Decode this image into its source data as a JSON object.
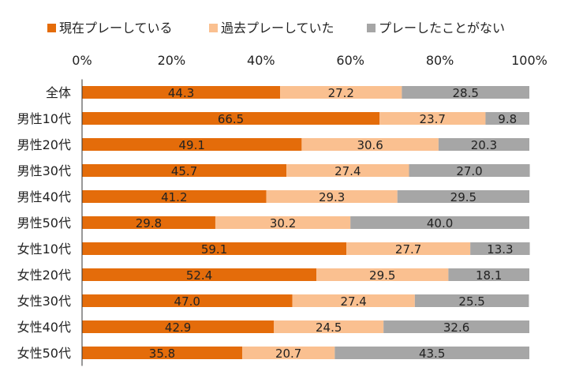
{
  "chart_data": {
    "type": "bar",
    "orientation": "horizontal",
    "stacked": true,
    "percent_axis": true,
    "title": "",
    "xlabel": "",
    "ylabel": "",
    "xlim": [
      0,
      100
    ],
    "x_ticks": [
      "0%",
      "20%",
      "40%",
      "60%",
      "80%",
      "100%"
    ],
    "legend_position": "top",
    "categories": [
      "全体",
      "男性10代",
      "男性20代",
      "男性30代",
      "男性40代",
      "男性50代",
      "女性10代",
      "女性20代",
      "女性30代",
      "女性40代",
      "女性50代"
    ],
    "series": [
      {
        "name": "現在プレーしている",
        "color": "#e46c0a",
        "values": [
          44.3,
          66.5,
          49.1,
          45.7,
          41.2,
          29.8,
          59.1,
          52.4,
          47.0,
          42.9,
          35.8
        ],
        "labels": [
          "44.3",
          "66.5",
          "49.1",
          "45.7",
          "41.2",
          "29.8",
          "59.1",
          "52.4",
          "47.0",
          "42.9",
          "35.8"
        ]
      },
      {
        "name": "過去プレーしていた",
        "color": "#fac090",
        "values": [
          27.2,
          23.7,
          30.6,
          27.4,
          29.3,
          30.2,
          27.7,
          29.5,
          27.4,
          24.5,
          20.7
        ],
        "labels": [
          "27.2",
          "23.7",
          "30.6",
          "27.4",
          "29.3",
          "30.2",
          "27.7",
          "29.5",
          "27.4",
          "24.5",
          "20.7"
        ]
      },
      {
        "name": "プレーしたことがない",
        "color": "#a6a6a6",
        "values": [
          28.5,
          9.8,
          20.3,
          27.0,
          29.5,
          40.0,
          13.3,
          18.1,
          25.5,
          32.6,
          43.5
        ],
        "labels": [
          "28.5",
          "9.8",
          "20.3",
          "27.0",
          "29.5",
          "40.0",
          "13.3",
          "18.1",
          "25.5",
          "32.6",
          "43.5"
        ]
      }
    ]
  }
}
